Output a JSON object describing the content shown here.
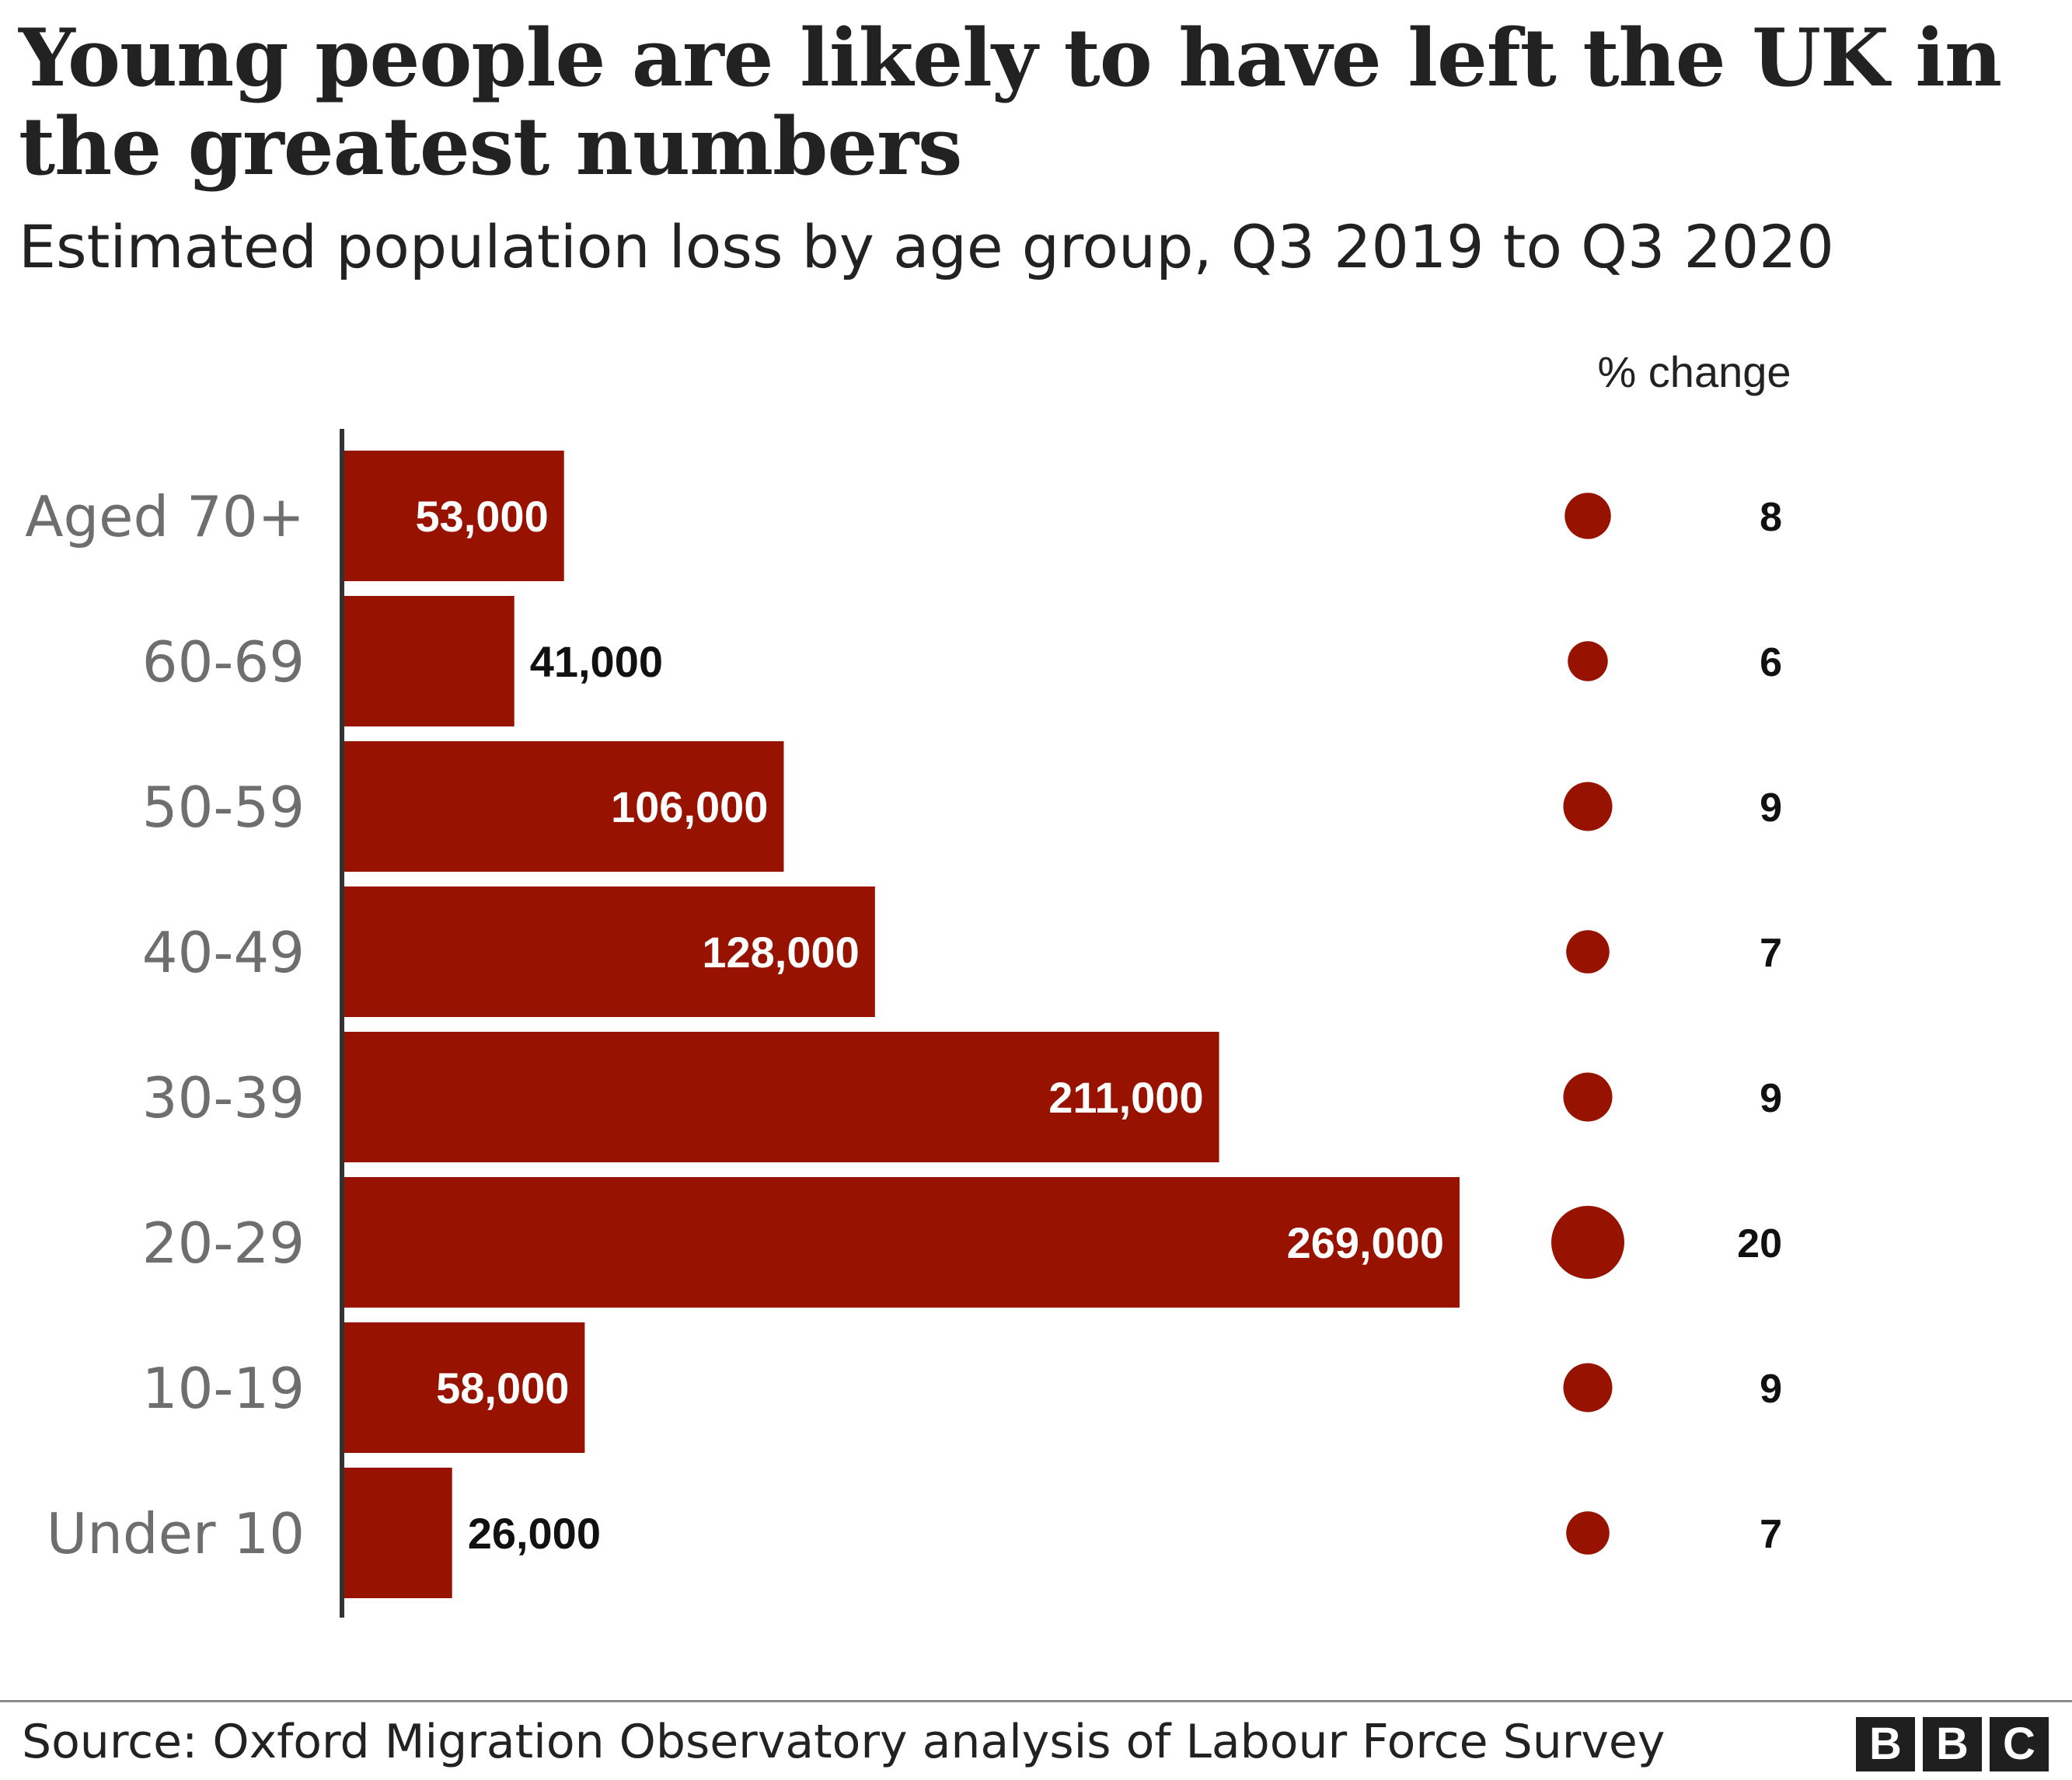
{
  "chart_data": {
    "type": "bar",
    "orientation": "horizontal",
    "title": "Young people are likely to have left the UK in the greatest numbers",
    "subtitle": "Estimated population loss by age group, Q3 2019 to Q3 2020",
    "categories": [
      "Aged 70+",
      "60-69",
      "50-59",
      "40-49",
      "30-39",
      "20-29",
      "10-19",
      "Under 10"
    ],
    "values": [
      53000,
      41000,
      106000,
      128000,
      211000,
      269000,
      58000,
      26000
    ],
    "value_labels": [
      "53,000",
      "41,000",
      "106,000",
      "128,000",
      "211,000",
      "269,000",
      "58,000",
      "26,000"
    ],
    "pct_change_heading": "% change",
    "pct_change": [
      8,
      6,
      9,
      7,
      9,
      20,
      9,
      7
    ],
    "pct_change_labels": [
      "8",
      "6",
      "9",
      "7",
      "9",
      "20",
      "9",
      "7"
    ],
    "xlim": [
      0,
      269000
    ],
    "grid": false,
    "legend": "none",
    "colors": {
      "bar": "#981200",
      "dot": "#981200",
      "axis": "#333333"
    }
  },
  "footer": {
    "source": "Source: Oxford Migration Observatory analysis of Labour Force Survey",
    "logo_letters": [
      "B",
      "B",
      "C"
    ]
  }
}
